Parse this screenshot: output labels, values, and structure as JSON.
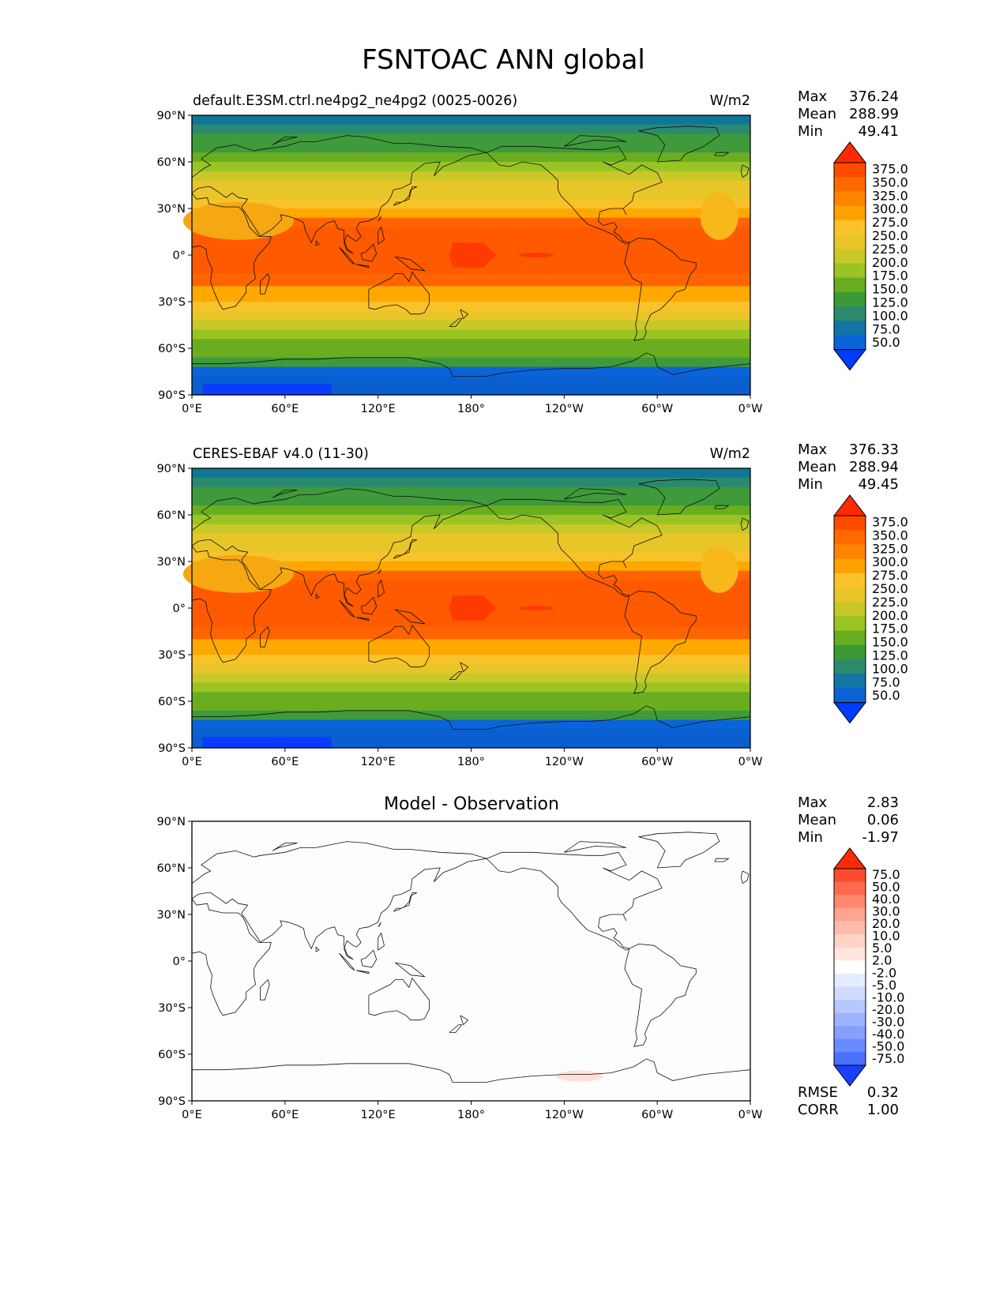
{
  "title": "FSNTOAC ANN global",
  "axes": {
    "lat_ticks": [
      "90°N",
      "60°N",
      "30°N",
      "0°",
      "30°S",
      "60°S",
      "90°S"
    ],
    "lon_ticks": [
      "0°E",
      "60°E",
      "120°E",
      "180°",
      "120°W",
      "60°W",
      "0°W"
    ]
  },
  "panels": [
    {
      "title": "default.E3SM.ctrl.ne4pg2_ne4pg2 (0025-0026)",
      "units": "W/m2",
      "stats": [
        {
          "label": "Max",
          "value": "376.24"
        },
        {
          "label": "Mean",
          "value": "288.99"
        },
        {
          "label": "Min",
          "value": "49.41"
        }
      ],
      "colorbar": {
        "levels": [
          "375.0",
          "350.0",
          "325.0",
          "300.0",
          "275.0",
          "250.0",
          "225.0",
          "200.0",
          "175.0",
          "150.0",
          "125.0",
          "100.0",
          "75.0",
          "50.0"
        ],
        "colors": [
          "#ff2a00",
          "#ff4a00",
          "#ff6a00",
          "#ff8400",
          "#ffa200",
          "#fbc32a",
          "#e8c62a",
          "#c8c928",
          "#9bc323",
          "#68ad1f",
          "#3b9a35",
          "#2c8a6c",
          "#1275a3",
          "#0a64d8",
          "#003cff"
        ]
      }
    },
    {
      "title": "CERES-EBAF v4.0 (11-30)",
      "units": "W/m2",
      "stats": [
        {
          "label": "Max",
          "value": "376.33"
        },
        {
          "label": "Mean",
          "value": "288.94"
        },
        {
          "label": "Min",
          "value": "49.45"
        }
      ],
      "colorbar": {
        "levels": [
          "375.0",
          "350.0",
          "325.0",
          "300.0",
          "275.0",
          "250.0",
          "225.0",
          "200.0",
          "175.0",
          "150.0",
          "125.0",
          "100.0",
          "75.0",
          "50.0"
        ],
        "colors": [
          "#ff2a00",
          "#ff4a00",
          "#ff6a00",
          "#ff8400",
          "#ffa200",
          "#fbc32a",
          "#e8c62a",
          "#c8c928",
          "#9bc323",
          "#68ad1f",
          "#3b9a35",
          "#2c8a6c",
          "#1275a3",
          "#0a64d8",
          "#003cff"
        ]
      }
    },
    {
      "title": "Model - Observation",
      "units": "",
      "stats": [
        {
          "label": "Max",
          "value": "2.83"
        },
        {
          "label": "Mean",
          "value": "0.06"
        },
        {
          "label": "Min",
          "value": "-1.97"
        }
      ],
      "extra_stats": [
        {
          "label": "RMSE",
          "value": "0.32"
        },
        {
          "label": "CORR",
          "value": "1.00"
        }
      ],
      "colorbar": {
        "levels": [
          "75.0",
          "50.0",
          "40.0",
          "30.0",
          "20.0",
          "10.0",
          "5.0",
          "2.0",
          "-2.0",
          "-5.0",
          "-10.0",
          "-20.0",
          "-30.0",
          "-40.0",
          "-50.0",
          "-75.0"
        ],
        "colors": [
          "#ff2a08",
          "#ff4a30",
          "#ff6a50",
          "#ff8870",
          "#ffa490",
          "#ffbcae",
          "#ffd2c6",
          "#ffe6df",
          "#ffffff",
          "#e6ecff",
          "#d0dbff",
          "#b8c8ff",
          "#9fb4ff",
          "#86a0ff",
          "#6b8aff",
          "#4a70ff",
          "#1a40ff"
        ]
      }
    }
  ],
  "color_scheme": {
    "sequential_bands": [
      "#0f7796",
      "#2a8a70",
      "#3e9a3a",
      "#6aae20",
      "#9ac424",
      "#c8c829",
      "#e8c62a",
      "#f8c229",
      "#ffa800",
      "#ff8800",
      "#ff6a00",
      "#ff5200",
      "#ff4400",
      "#ff3a00"
    ]
  }
}
